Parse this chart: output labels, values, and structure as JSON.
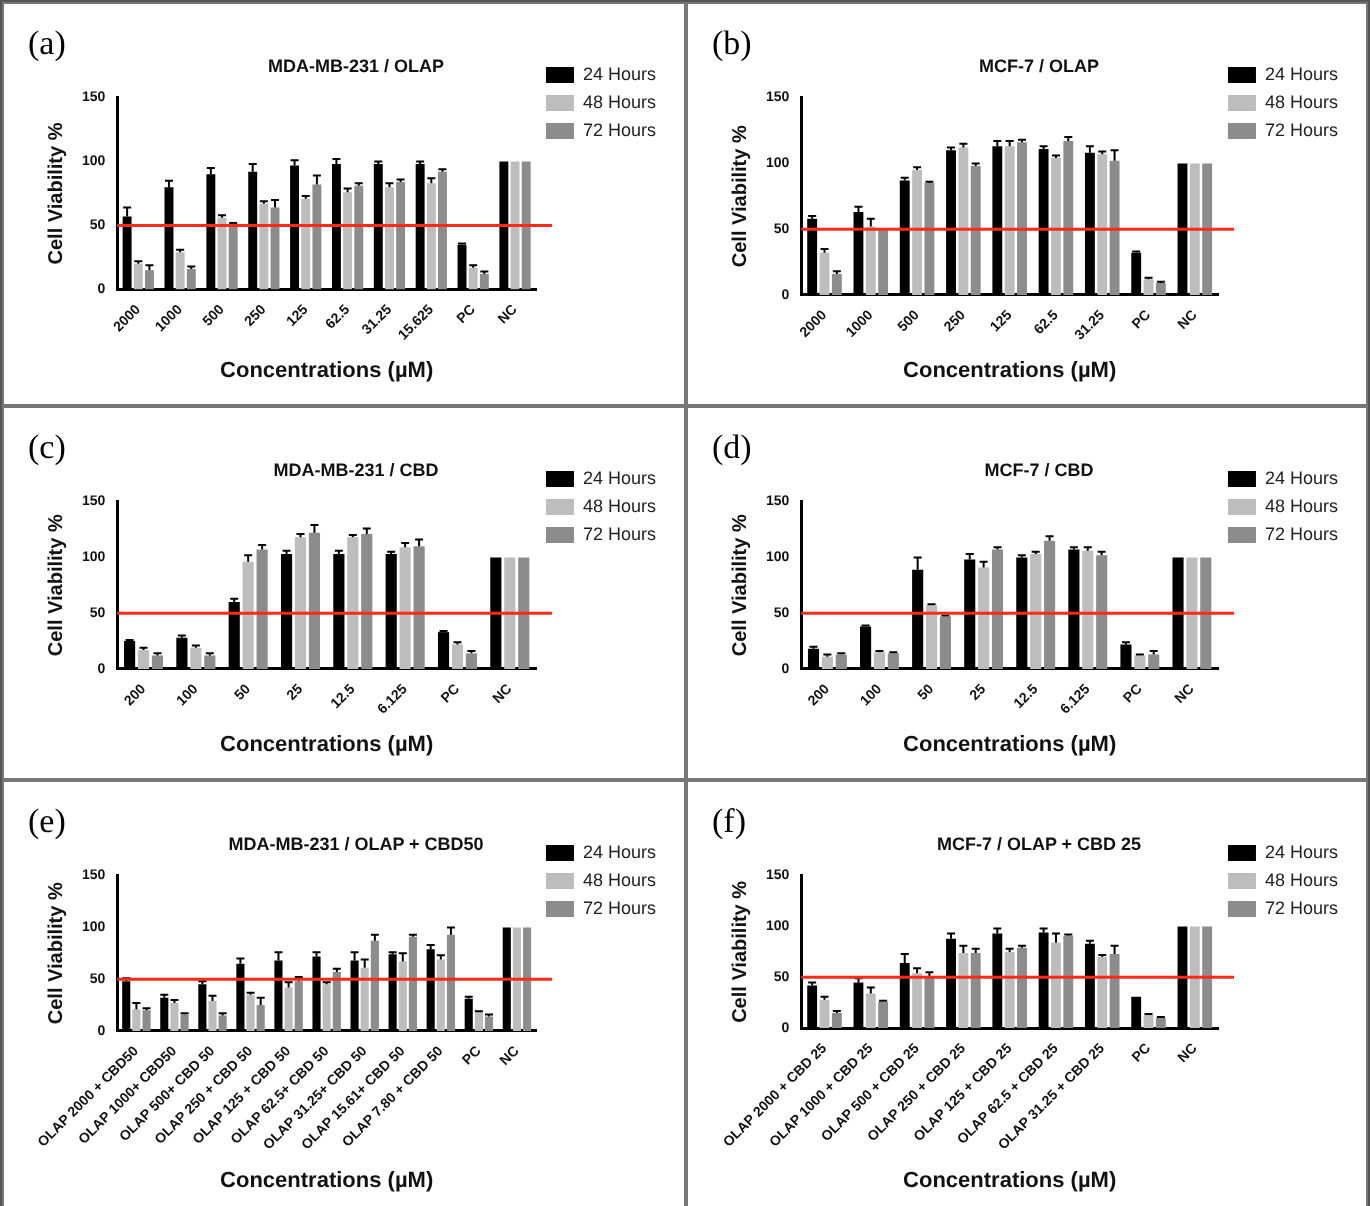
{
  "chart_data": [
    {
      "type": "bar",
      "title": "MDA-MB-231 / OLAP",
      "annotations": [
        "(a)"
      ],
      "xlabel": "Concentrations (µM)",
      "ylabel": "Cell Viability %",
      "categories": [
        "2000",
        "1000",
        "500",
        "250",
        "125",
        "62.5",
        "31.25",
        "15.625",
        "PC",
        "NC"
      ],
      "ylim": [
        0,
        150
      ],
      "yticks": [
        0,
        50,
        100,
        150
      ],
      "grid": false,
      "legend": "top right",
      "ref_lines": [
        {
          "axis": "y",
          "value": 50,
          "color": "#ff2a1a"
        }
      ],
      "series": [
        {
          "name": "24 Hours",
          "color": "#000000",
          "values": [
            57,
            80,
            90,
            92,
            97,
            98,
            98,
            98,
            35,
            100
          ],
          "errors": [
            7,
            5,
            5,
            6,
            4,
            4,
            2,
            2,
            1,
            null
          ]
        },
        {
          "name": "48 Hours",
          "color": "#bdbdbd",
          "values": [
            20,
            29,
            56,
            67,
            71,
            76,
            80,
            83,
            17,
            100
          ],
          "errors": [
            2,
            2,
            2,
            2,
            2,
            3,
            3,
            4,
            2,
            null
          ]
        },
        {
          "name": "72 Hours",
          "color": "#8c8c8c",
          "values": [
            15,
            16,
            50,
            64,
            82,
            81,
            84,
            92,
            12,
            100
          ],
          "errors": [
            4,
            2,
            2,
            6,
            7,
            2,
            2,
            2,
            2,
            null
          ]
        }
      ]
    },
    {
      "type": "bar",
      "title": "MCF-7 / OLAP",
      "annotations": [
        "(b)"
      ],
      "xlabel": "Concentrations (µM)",
      "ylabel": "Cell Viability %",
      "categories": [
        "2000",
        "1000",
        "500",
        "250",
        "125",
        "62.5",
        "31.25",
        "PC",
        "NC"
      ],
      "ylim": [
        0,
        150
      ],
      "yticks": [
        0,
        50,
        100,
        150
      ],
      "grid": false,
      "legend": "top right",
      "ref_lines": [
        {
          "axis": "y",
          "value": 50,
          "color": "#ff2a1a"
        }
      ],
      "series": [
        {
          "name": "24 Hours",
          "color": "#000000",
          "values": [
            58,
            63,
            87,
            110,
            113,
            111,
            108,
            32,
            100
          ],
          "errors": [
            2,
            4,
            2,
            2,
            4,
            2,
            5,
            1,
            null
          ]
        },
        {
          "name": "48 Hours",
          "color": "#bdbdbd",
          "values": [
            32,
            52,
            95,
            112,
            113,
            104,
            107,
            12,
            100
          ],
          "errors": [
            3,
            6,
            2,
            3,
            4,
            2,
            2,
            1,
            null
          ]
        },
        {
          "name": "72 Hours",
          "color": "#8c8c8c",
          "values": [
            16,
            49,
            85,
            98,
            116,
            117,
            102,
            9,
            100
          ],
          "errors": [
            2,
            1,
            1,
            2,
            2,
            3,
            8,
            1,
            null
          ]
        }
      ]
    },
    {
      "type": "bar",
      "title": "MDA-MB-231 / CBD",
      "annotations": [
        "(c)"
      ],
      "xlabel": "Concentrations (µM)",
      "ylabel": "Cell Viability %",
      "categories": [
        "200",
        "100",
        "50",
        "25",
        "12.5",
        "6.125",
        "PC",
        "NC"
      ],
      "ylim": [
        0,
        150
      ],
      "yticks": [
        0,
        50,
        100,
        150
      ],
      "grid": false,
      "legend": "top right",
      "ref_lines": [
        {
          "axis": "y",
          "value": 50,
          "color": "#ff2a1a"
        }
      ],
      "series": [
        {
          "name": "24 Hours",
          "color": "#000000",
          "values": [
            25,
            28,
            60,
            103,
            103,
            103,
            33,
            100
          ],
          "errors": [
            1,
            2,
            3,
            3,
            3,
            2,
            1,
            null
          ]
        },
        {
          "name": "48 Hours",
          "color": "#bdbdbd",
          "values": [
            17,
            19,
            96,
            118,
            118,
            109,
            22,
            100
          ],
          "errors": [
            2,
            2,
            6,
            3,
            2,
            4,
            2,
            null
          ]
        },
        {
          "name": "72 Hours",
          "color": "#8c8c8c",
          "values": [
            12,
            12,
            107,
            122,
            121,
            110,
            14,
            100
          ],
          "errors": [
            2,
            2,
            4,
            7,
            5,
            6,
            2,
            null
          ]
        }
      ]
    },
    {
      "type": "bar",
      "title": "MCF-7 / CBD",
      "annotations": [
        "(d)"
      ],
      "xlabel": "Concentrations (µM)",
      "ylabel": "Cell Viability %",
      "categories": [
        "200",
        "100",
        "50",
        "25",
        "12.5",
        "6.125",
        "PC",
        "NC"
      ],
      "ylim": [
        0,
        150
      ],
      "yticks": [
        0,
        50,
        100,
        150
      ],
      "grid": false,
      "legend": "top right",
      "ref_lines": [
        {
          "axis": "y",
          "value": 50,
          "color": "#ff2a1a"
        }
      ],
      "series": [
        {
          "name": "24 Hours",
          "color": "#000000",
          "values": [
            18,
            38,
            89,
            98,
            100,
            107,
            22,
            100
          ],
          "errors": [
            2,
            1,
            11,
            5,
            2,
            2,
            2,
            null
          ]
        },
        {
          "name": "48 Hours",
          "color": "#bdbdbd",
          "values": [
            11,
            15,
            57,
            91,
            103,
            106,
            12,
            100
          ],
          "errors": [
            2,
            1,
            1,
            5,
            2,
            3,
            1,
            null
          ]
        },
        {
          "name": "72 Hours",
          "color": "#8c8c8c",
          "values": [
            13,
            14,
            47,
            107,
            115,
            102,
            13,
            100
          ],
          "errors": [
            1,
            1,
            1,
            2,
            4,
            3,
            3,
            null
          ]
        }
      ]
    },
    {
      "type": "bar",
      "title": "MDA-MB-231 / OLAP + CBD50",
      "annotations": [
        "(e)"
      ],
      "xlabel": "Concentrations (µM)",
      "ylabel": "Cell Viability %",
      "categories": [
        "OLAP 2000 + CBD50",
        "OLAP 1000+ CBD50",
        "OLAP 500+ CBD 50",
        "OLAP 250 + CBD 50",
        "OLAP 125 + CBD 50",
        "OLAP 62.5+ CBD 50",
        "OLAP 31.25+ CBD 50",
        "OLAP 15.61+ CBD 50",
        "OLAP 7.80 + CBD 50",
        "PC",
        "NC"
      ],
      "ylim": [
        0,
        150
      ],
      "yticks": [
        0,
        50,
        100,
        150
      ],
      "grid": false,
      "legend": "top right",
      "ref_lines": [
        {
          "axis": "y",
          "value": 50,
          "color": "#ff2a1a"
        }
      ],
      "series": [
        {
          "name": "24 Hours",
          "color": "#000000",
          "values": [
            48,
            32,
            45,
            65,
            68,
            72,
            68,
            74,
            79,
            31,
            100
          ],
          "errors": [
            3,
            3,
            3,
            5,
            8,
            4,
            8,
            2,
            4,
            2,
            null
          ]
        },
        {
          "name": "48 Hours",
          "color": "#bdbdbd",
          "values": [
            21,
            27,
            29,
            35,
            42,
            45,
            61,
            67,
            69,
            18,
            100
          ],
          "errors": [
            6,
            3,
            5,
            2,
            5,
            2,
            8,
            8,
            4,
            1,
            null
          ]
        },
        {
          "name": "72 Hours",
          "color": "#8c8c8c",
          "values": [
            20,
            16,
            15,
            25,
            48,
            57,
            87,
            91,
            93,
            14,
            100
          ],
          "errors": [
            2,
            1,
            2,
            7,
            4,
            3,
            6,
            2,
            7,
            2,
            null
          ]
        }
      ]
    },
    {
      "type": "bar",
      "title": "MCF-7 / OLAP + CBD 25",
      "annotations": [
        "(f)"
      ],
      "xlabel": "Concentrations (µM)",
      "ylabel": "Cell Viability %",
      "categories": [
        "OLAP 2000 + CBD 25",
        "OLAP 1000 + CBD 25",
        "OLAP 500 + CBD 25",
        "OLAP 250 + CBD 25",
        "OLAP 125 + CBD 25",
        "OLAP 62.5 + CBD 25",
        "OLAP 31.25 + CBD 25",
        "PC",
        "NC"
      ],
      "ylim": [
        0,
        150
      ],
      "yticks": [
        0,
        50,
        100,
        150
      ],
      "grid": false,
      "legend": "top right",
      "ref_lines": [
        {
          "axis": "y",
          "value": 50,
          "color": "#ff2a1a"
        }
      ],
      "series": [
        {
          "name": "24 Hours",
          "color": "#000000",
          "values": [
            42,
            45,
            64,
            88,
            93,
            94,
            83,
            31,
            100
          ],
          "errors": [
            3,
            4,
            9,
            5,
            5,
            4,
            3,
            null,
            null
          ]
        },
        {
          "name": "48 Hours",
          "color": "#bdbdbd",
          "values": [
            28,
            34,
            54,
            74,
            75,
            84,
            70,
            13,
            100
          ],
          "errors": [
            3,
            6,
            5,
            7,
            3,
            9,
            2,
            1,
            null
          ]
        },
        {
          "name": "72 Hours",
          "color": "#8c8c8c",
          "values": [
            15,
            26,
            51,
            74,
            79,
            91,
            73,
            10,
            100
          ],
          "errors": [
            2,
            1,
            4,
            4,
            2,
            1,
            8,
            1,
            null
          ]
        }
      ]
    }
  ]
}
